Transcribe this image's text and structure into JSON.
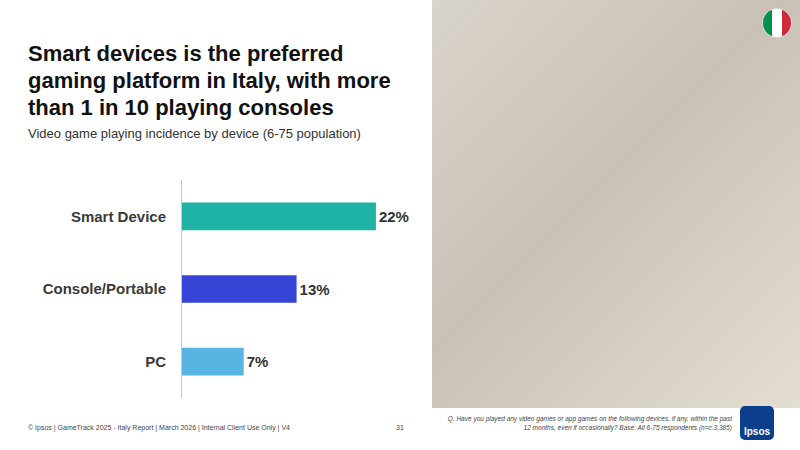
{
  "chart_data": {
    "type": "bar",
    "title": "Smart devices is the preferred gaming platform in Italy, with more than 1 in 10 playing consoles",
    "subtitle": "Video game playing incidence by device  (6-75 population)",
    "orientation": "horizontal",
    "categories": [
      "Smart Device",
      "Console/Portable",
      "PC"
    ],
    "values": [
      22,
      13,
      7
    ],
    "value_labels": [
      "22%",
      "13%",
      "7%"
    ],
    "colors": [
      "#1fb3a6",
      "#3445d6",
      "#58b4e2"
    ],
    "xlim": [
      0,
      27
    ],
    "data_labels": true,
    "tick_labels": "y",
    "grid": false
  },
  "footer": {
    "copyright": "© Ipsos | GameTrack 2025 - Italy Report | March 2026 | Internal Client Use Only | V4",
    "page": "31",
    "note": "Q. Have you played any video games or app games on the following devices, if any, within the past 12 months, even if occasionally? Base: All 6-75 respondents (n=c.3,385)"
  },
  "logo": "Ipsos"
}
